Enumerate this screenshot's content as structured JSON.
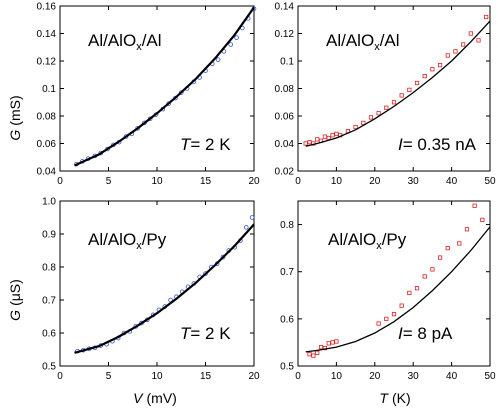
{
  "ylabel_top": [
    "G",
    "(mS)"
  ],
  "ylabel_bottom": [
    "G",
    "(μS)"
  ],
  "xlabel_left": [
    "V",
    "(mV)"
  ],
  "xlabel_right": [
    "T",
    "(K)"
  ],
  "chart_data": [
    {
      "type": "scatter",
      "panel": "top-left",
      "annotation_main": "Al/AlO",
      "annotation_sub": "x",
      "annotation_tail": "/Al",
      "condition_symbol": "T",
      "condition_value": "= 2 K",
      "xlim": [
        0,
        20
      ],
      "ylim": [
        0.04,
        0.16
      ],
      "xticks": [
        "0",
        "5",
        "10",
        "15",
        "20"
      ],
      "yticks": [
        "0.04",
        "0.06",
        "0.08",
        "0.1",
        "0.12",
        "0.14",
        "0.16"
      ],
      "marker_color": "#3355dd",
      "fit": {
        "x": [
          1.5,
          4,
          6,
          8,
          10,
          12,
          14,
          16,
          18,
          20
        ],
        "y": [
          0.044,
          0.052,
          0.061,
          0.071,
          0.082,
          0.094,
          0.107,
          0.122,
          0.139,
          0.159
        ]
      },
      "points": {
        "x": [
          1.7,
          2.3,
          2.9,
          3.6,
          4.2,
          4.9,
          5.5,
          6.1,
          6.8,
          7.4,
          8.0,
          8.7,
          9.3,
          9.9,
          10.6,
          11.2,
          11.9,
          12.5,
          13.1,
          13.8,
          14.4,
          15.0,
          15.7,
          16.3,
          16.9,
          17.6,
          18.2,
          18.8,
          19.4,
          20.0
        ],
        "y": [
          0.045,
          0.047,
          0.049,
          0.051,
          0.053,
          0.056,
          0.059,
          0.061,
          0.065,
          0.067,
          0.071,
          0.075,
          0.078,
          0.081,
          0.085,
          0.089,
          0.093,
          0.097,
          0.1,
          0.105,
          0.108,
          0.113,
          0.118,
          0.121,
          0.127,
          0.132,
          0.137,
          0.144,
          0.151,
          0.158
        ]
      }
    },
    {
      "type": "scatter",
      "panel": "top-right",
      "annotation_main": "Al/AlO",
      "annotation_sub": "x",
      "annotation_tail": "/Al",
      "condition_symbol": "I",
      "condition_value": "= 0.35 nA",
      "xlim": [
        0,
        50
      ],
      "ylim": [
        0.02,
        0.14
      ],
      "xticks": [
        "0",
        "10",
        "20",
        "30",
        "40",
        "50"
      ],
      "yticks": [
        "0.02",
        "0.04",
        "0.06",
        "0.08",
        "0.1",
        "0.12",
        "0.14"
      ],
      "marker_color": "#dd2222",
      "fit": {
        "x": [
          2,
          5,
          10,
          15,
          20,
          25,
          30,
          35,
          40,
          45,
          50
        ],
        "y": [
          0.038,
          0.04,
          0.044,
          0.05,
          0.058,
          0.067,
          0.077,
          0.088,
          0.1,
          0.114,
          0.129
        ]
      },
      "points": {
        "x": [
          2,
          3,
          4,
          5,
          6,
          7,
          8,
          9,
          10,
          11,
          13,
          15,
          17,
          19,
          21,
          23,
          25,
          27,
          29,
          31,
          33,
          35,
          37,
          39,
          41,
          43,
          45,
          47,
          49
        ],
        "y": [
          0.04,
          0.041,
          0.04,
          0.043,
          0.042,
          0.045,
          0.044,
          0.046,
          0.047,
          0.046,
          0.049,
          0.052,
          0.055,
          0.059,
          0.062,
          0.066,
          0.07,
          0.075,
          0.079,
          0.084,
          0.089,
          0.094,
          0.097,
          0.104,
          0.107,
          0.112,
          0.12,
          0.115,
          0.132
        ]
      }
    },
    {
      "type": "scatter",
      "panel": "bottom-left",
      "annotation_main": "Al/AlO",
      "annotation_sub": "x",
      "annotation_tail": "/Py",
      "condition_symbol": "T",
      "condition_value": "= 2 K",
      "xlim": [
        0,
        20
      ],
      "ylim": [
        0.5,
        1.0
      ],
      "xticks": [
        "0",
        "5",
        "10",
        "15",
        "20"
      ],
      "yticks": [
        "0.5",
        "0.6",
        "0.7",
        "0.8",
        "0.9",
        "1.0"
      ],
      "marker_color": "#3355dd",
      "fit": {
        "x": [
          1.5,
          4,
          6,
          8,
          10,
          12,
          14,
          16,
          18,
          20
        ],
        "y": [
          0.54,
          0.56,
          0.588,
          0.622,
          0.66,
          0.704,
          0.752,
          0.806,
          0.864,
          0.929
        ]
      },
      "points": {
        "x": [
          1.8,
          2.4,
          3.0,
          3.6,
          4.2,
          4.8,
          5.4,
          6.0,
          6.6,
          7.2,
          7.8,
          8.4,
          9.0,
          9.6,
          10.2,
          10.8,
          11.4,
          12.0,
          12.6,
          13.2,
          13.8,
          14.4,
          15.0,
          15.6,
          16.2,
          16.8,
          17.4,
          18.0,
          18.6,
          19.2,
          19.8
        ],
        "y": [
          0.545,
          0.548,
          0.552,
          0.555,
          0.562,
          0.566,
          0.575,
          0.585,
          0.6,
          0.605,
          0.62,
          0.63,
          0.64,
          0.655,
          0.67,
          0.68,
          0.7,
          0.71,
          0.725,
          0.74,
          0.75,
          0.77,
          0.78,
          0.8,
          0.81,
          0.83,
          0.85,
          0.86,
          0.88,
          0.92,
          0.95
        ]
      }
    },
    {
      "type": "scatter",
      "panel": "bottom-right",
      "annotation_main": "Al/AlO",
      "annotation_sub": "x",
      "annotation_tail": "/Py",
      "condition_symbol": "I",
      "condition_value": "= 8 pA",
      "xlim": [
        0,
        50
      ],
      "ylim": [
        0.5,
        0.85
      ],
      "xticks": [
        "0",
        "10",
        "20",
        "30",
        "40",
        "50"
      ],
      "yticks": [
        "0.5",
        "0.6",
        "0.7",
        "0.8"
      ],
      "marker_color": "#dd2222",
      "fit": {
        "x": [
          2,
          5,
          10,
          15,
          20,
          25,
          30,
          35,
          40,
          45,
          50
        ],
        "y": [
          0.53,
          0.533,
          0.54,
          0.552,
          0.57,
          0.594,
          0.624,
          0.66,
          0.7,
          0.745,
          0.795
        ]
      },
      "points": {
        "x": [
          3,
          4,
          5,
          6,
          7,
          8,
          9,
          10,
          21,
          23,
          25,
          27,
          29,
          31,
          33,
          35,
          37,
          39,
          42,
          44,
          46,
          48
        ],
        "y": [
          0.525,
          0.522,
          0.528,
          0.54,
          0.538,
          0.548,
          0.55,
          0.552,
          0.59,
          0.6,
          0.61,
          0.628,
          0.655,
          0.665,
          0.69,
          0.705,
          0.73,
          0.75,
          0.76,
          0.79,
          0.84,
          0.81
        ]
      }
    }
  ]
}
